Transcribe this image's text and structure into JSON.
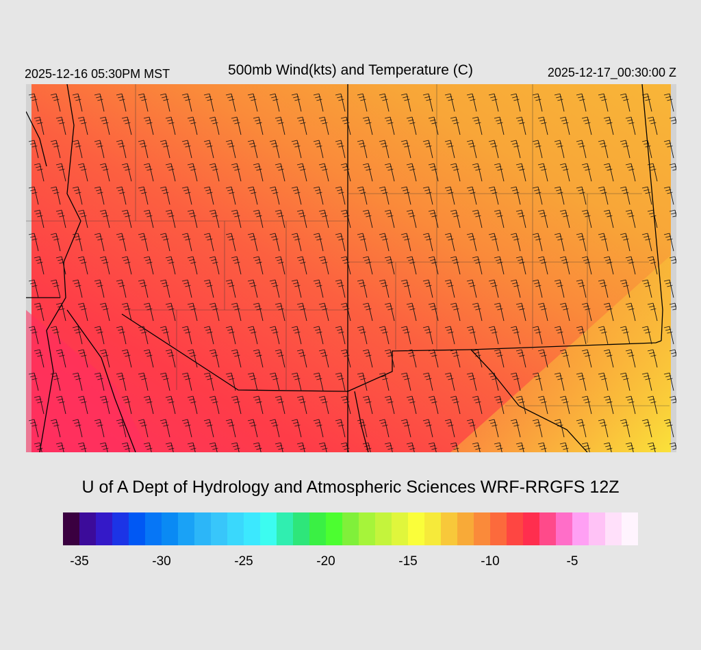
{
  "header": {
    "local_time": "2025-12-16 05:30PM MST",
    "title": "500mb Wind(kts) and Temperature (C)",
    "utc_time": "2025-12-17_00:30:00 Z"
  },
  "credit": "U of A Dept of Hydrology and Atmospheric Sciences WRF-RRGFS 12Z",
  "colorbar": {
    "colors": [
      "#3a0040",
      "#3c0b9a",
      "#3419c8",
      "#1c34e6",
      "#0058f4",
      "#0676f6",
      "#0a8af4",
      "#1aa2f6",
      "#2cb6f8",
      "#38c6fa",
      "#3ad8fc",
      "#3ce8fe",
      "#3cfcf0",
      "#30eeb0",
      "#2ee67a",
      "#3af044",
      "#4cfe30",
      "#80f03a",
      "#a6f43a",
      "#c4f43c",
      "#e0f63c",
      "#fafe3a",
      "#f6ea3a",
      "#f8c83a",
      "#f8aa38",
      "#fa8a3a",
      "#fc6a3c",
      "#fe4642",
      "#ff2e4e",
      "#ff4a8a",
      "#ff6ec8",
      "#ffa0f4",
      "#ffc2f6",
      "#ffe0fa",
      "#fff4fe"
    ],
    "ticks": [
      "-35",
      "-30",
      "-25",
      "-20",
      "-15",
      "-10",
      "-5"
    ]
  },
  "map": {
    "field_description_colors": {
      "cold": "#ff2e4e",
      "mid": "#fc6a3c",
      "warm": "#f8aa38",
      "warmest": "#fae23a"
    }
  }
}
